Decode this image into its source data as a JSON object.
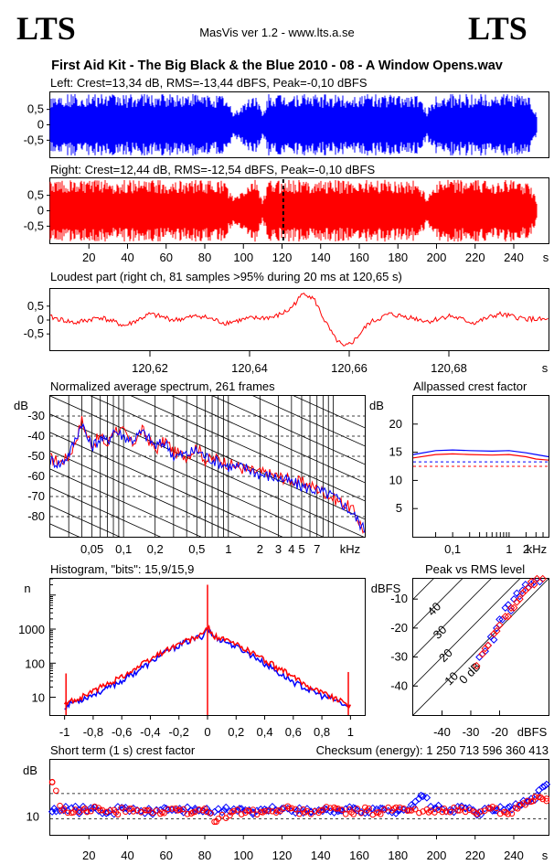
{
  "header": {
    "logo_left": "LTS",
    "logo_right": "LTS",
    "version": "MasVis ver 1.2 - www.lts.a.se",
    "filename": "First Aid Kit - The Big Black & the Blue 2010 - 08 - A Window Opens.wav"
  },
  "colors": {
    "left": "#0000ff",
    "right": "#ff0000",
    "axis": "#000000"
  },
  "chart_data": [
    {
      "id": "left-waveform",
      "type": "area",
      "title": "Left: Crest=13,34 dB, RMS=-13,44 dBFS, Peak=-0,10 dBFS",
      "series_color": "#0000ff",
      "ylim": [
        -1,
        1
      ],
      "ytick_labels": [
        "0,5",
        "0",
        "-0,5"
      ],
      "ytick_values": [
        0.5,
        0,
        -0.5
      ],
      "xlim": [
        0,
        258
      ],
      "envelope": {
        "x": [
          0,
          10,
          20,
          30,
          40,
          50,
          60,
          70,
          80,
          90,
          95,
          105,
          107,
          110,
          113,
          120,
          130,
          140,
          150,
          160,
          170,
          180,
          190,
          195,
          200,
          210,
          220,
          230,
          240,
          248,
          252
        ],
        "peak": [
          0.95,
          0.95,
          0.95,
          0.95,
          0.95,
          0.95,
          0.95,
          0.95,
          0.95,
          0.95,
          0.4,
          0.95,
          0.95,
          0.3,
          0.95,
          0.95,
          0.95,
          0.95,
          0.95,
          0.95,
          0.95,
          0.95,
          0.95,
          0.45,
          0.95,
          0.95,
          0.95,
          0.95,
          0.95,
          0.9,
          0.3
        ]
      }
    },
    {
      "id": "right-waveform",
      "type": "area",
      "title": "Right: Crest=12,44 dB, RMS=-12,54 dBFS, Peak=-0,10 dBFS",
      "series_color": "#ff0000",
      "ylim": [
        -1,
        1
      ],
      "ytick_labels": [
        "0,5",
        "0",
        "-0,5"
      ],
      "ytick_values": [
        0.5,
        0,
        -0.5
      ],
      "xlim": [
        0,
        258
      ],
      "xtick_values": [
        20,
        40,
        60,
        80,
        100,
        120,
        140,
        160,
        180,
        200,
        220,
        240
      ],
      "xtick_labels": [
        "20",
        "40",
        "60",
        "80",
        "100",
        "120",
        "140",
        "160",
        "180",
        "200",
        "220",
        "240",
        "s"
      ],
      "marker_x": 120.65,
      "envelope": {
        "x": [
          0,
          10,
          20,
          30,
          40,
          50,
          60,
          70,
          80,
          90,
          95,
          105,
          107,
          110,
          113,
          120,
          130,
          140,
          150,
          160,
          170,
          180,
          190,
          195,
          200,
          210,
          220,
          230,
          240,
          248,
          252
        ],
        "peak": [
          0.95,
          0.95,
          0.95,
          0.95,
          0.95,
          0.95,
          0.95,
          0.95,
          0.95,
          0.95,
          0.4,
          0.95,
          0.95,
          0.3,
          0.95,
          0.95,
          0.95,
          0.95,
          0.95,
          0.95,
          0.95,
          0.95,
          0.95,
          0.45,
          0.95,
          0.95,
          0.95,
          0.95,
          0.95,
          0.9,
          0.3
        ]
      }
    },
    {
      "id": "loudest-part",
      "type": "line",
      "title": "Loudest part (right ch, 81 samples >95% during 20 ms at 120,65 s)",
      "series_color": "#ff0000",
      "xlim": [
        120.6,
        120.7
      ],
      "ylim": [
        -1,
        1
      ],
      "ytick_labels": [
        "0,5",
        "0",
        "-0,5"
      ],
      "ytick_values": [
        0.5,
        0,
        -0.5
      ],
      "xtick_values": [
        120.62,
        120.64,
        120.66,
        120.68
      ],
      "xtick_labels": [
        "120,62",
        "120,64",
        "120,66",
        "120,68",
        "s"
      ],
      "x": [
        120.6,
        120.605,
        120.61,
        120.615,
        120.62,
        120.625,
        120.63,
        120.635,
        120.64,
        120.645,
        120.648,
        120.651,
        120.653,
        120.655,
        120.657,
        120.659,
        120.661,
        120.664,
        120.668,
        120.672,
        120.676,
        120.68,
        120.685,
        120.69,
        120.695,
        120.7
      ],
      "y": [
        0.1,
        -0.1,
        0.1,
        -0.2,
        0.2,
        0.0,
        0.15,
        -0.1,
        0.05,
        0.1,
        0.35,
        0.95,
        0.7,
        0.0,
        -0.6,
        -0.95,
        -0.7,
        -0.1,
        0.2,
        0.1,
        -0.05,
        0.15,
        -0.1,
        0.2,
        0.05,
        0.0
      ]
    },
    {
      "id": "average-spectrum",
      "type": "line",
      "title": "Normalized average spectrum, 261 frames",
      "yunit": "dB",
      "xunit": "kHz",
      "xscale": "log",
      "xlim": [
        0.02,
        20
      ],
      "ylim": [
        -90,
        -20
      ],
      "ytick_values": [
        -30,
        -40,
        -50,
        -60,
        -70,
        -80
      ],
      "ytick_labels": [
        "-30",
        "-40",
        "-50",
        "-60",
        "-70",
        "-80"
      ],
      "xtick_values": [
        0.05,
        0.1,
        0.2,
        0.5,
        1,
        2,
        3,
        4,
        5,
        7
      ],
      "xtick_labels": [
        "0,05",
        "0,1",
        "0,2",
        "0,5",
        "1",
        "2",
        "3",
        "4",
        "5",
        "7",
        "kHz"
      ],
      "series": [
        {
          "color": "#ff0000",
          "x": [
            0.02,
            0.025,
            0.03,
            0.035,
            0.04,
            0.045,
            0.05,
            0.06,
            0.07,
            0.08,
            0.1,
            0.12,
            0.15,
            0.2,
            0.25,
            0.3,
            0.4,
            0.5,
            0.6,
            0.8,
            1,
            1.5,
            2,
            3,
            4,
            5,
            7,
            10,
            15,
            20
          ],
          "y": [
            -51,
            -53,
            -50,
            -42,
            -32,
            -40,
            -44,
            -40,
            -45,
            -36,
            -38,
            -44,
            -37,
            -47,
            -42,
            -48,
            -50,
            -45,
            -52,
            -51,
            -54,
            -57,
            -58,
            -60,
            -62,
            -63,
            -66,
            -71,
            -76,
            -88
          ]
        },
        {
          "color": "#0000ff",
          "x": [
            0.02,
            0.025,
            0.03,
            0.035,
            0.04,
            0.045,
            0.05,
            0.06,
            0.07,
            0.08,
            0.1,
            0.12,
            0.15,
            0.2,
            0.25,
            0.3,
            0.4,
            0.5,
            0.6,
            0.8,
            1,
            1.5,
            2,
            3,
            4,
            5,
            7,
            10,
            15,
            20
          ],
          "y": [
            -52,
            -54,
            -49,
            -41,
            -33,
            -41,
            -45,
            -41,
            -43,
            -37,
            -40,
            -42,
            -38,
            -45,
            -43,
            -50,
            -49,
            -47,
            -50,
            -53,
            -55,
            -56,
            -59,
            -61,
            -63,
            -65,
            -67,
            -70,
            -78,
            -87
          ]
        }
      ]
    },
    {
      "id": "allpassed-crest",
      "type": "line",
      "title": "Allpassed crest factor",
      "yunit": "dB",
      "xunit": "kHz",
      "xscale": "log",
      "xlim": [
        0.02,
        5
      ],
      "ylim": [
        0,
        25
      ],
      "ytick_values": [
        20,
        15,
        10,
        5
      ],
      "ytick_labels": [
        "20",
        "15",
        "10",
        "5"
      ],
      "xtick_values": [
        0.1,
        1,
        2
      ],
      "xtick_labels": [
        "0,1",
        "1",
        "2",
        "kHz"
      ],
      "reference_lines": [
        {
          "color": "#ff0000",
          "y": 12.5
        },
        {
          "color": "#0000ff",
          "y": 13.3
        }
      ],
      "series": [
        {
          "color": "#0000ff",
          "x": [
            0.02,
            0.05,
            0.1,
            0.2,
            0.5,
            1,
            2,
            3,
            5
          ],
          "y": [
            14.6,
            15.3,
            15.4,
            15.3,
            15.2,
            15.3,
            14.9,
            14.6,
            14.2
          ]
        },
        {
          "color": "#ff0000",
          "x": [
            0.02,
            0.05,
            0.1,
            0.2,
            0.5,
            1,
            2,
            3,
            5
          ],
          "y": [
            14.0,
            14.6,
            14.7,
            14.6,
            14.5,
            14.6,
            14.2,
            13.8,
            13.6
          ]
        }
      ]
    },
    {
      "id": "histogram",
      "type": "line",
      "title": "Histogram, \"bits\": 15,9/15,9",
      "yunit": "n",
      "yscale": "log",
      "xlim": [
        -1.1,
        1.1
      ],
      "ylim": [
        3,
        30000
      ],
      "ytick_values": [
        1000,
        100,
        10
      ],
      "ytick_labels": [
        "1000",
        "100",
        "10"
      ],
      "xtick_values": [
        -1,
        -0.8,
        -0.6,
        -0.4,
        -0.2,
        0,
        0.2,
        0.4,
        0.6,
        0.8,
        1
      ],
      "xtick_labels": [
        "-1",
        "-0,8",
        "-0,6",
        "-0,4",
        "-0,2",
        "0",
        "0,2",
        "0,4",
        "0,6",
        "0,8",
        "1"
      ],
      "series": [
        {
          "color": "#0000ff",
          "x": [
            -1,
            -0.95,
            -0.9,
            -0.8,
            -0.7,
            -0.6,
            -0.5,
            -0.4,
            -0.3,
            -0.2,
            -0.1,
            -0.03,
            0,
            0.03,
            0.1,
            0.2,
            0.3,
            0.4,
            0.5,
            0.6,
            0.7,
            0.8,
            0.9,
            0.95,
            1
          ],
          "y": [
            5,
            7,
            8,
            12,
            18,
            30,
            55,
            100,
            200,
            330,
            500,
            650,
            1100,
            650,
            480,
            300,
            180,
            95,
            50,
            28,
            17,
            11,
            8,
            6,
            5
          ]
        },
        {
          "color": "#ff0000",
          "x": [
            -1,
            -0.95,
            -0.9,
            -0.8,
            -0.7,
            -0.6,
            -0.5,
            -0.4,
            -0.3,
            -0.2,
            -0.1,
            -0.03,
            0,
            0.03,
            0.1,
            0.2,
            0.3,
            0.4,
            0.5,
            0.6,
            0.7,
            0.8,
            0.9,
            0.95,
            1
          ],
          "y": [
            6,
            8,
            9,
            15,
            24,
            40,
            70,
            125,
            230,
            360,
            530,
            680,
            1200,
            680,
            520,
            350,
            220,
            120,
            68,
            38,
            22,
            14,
            9,
            7,
            6
          ]
        }
      ],
      "spikes": [
        {
          "color": "#ff0000",
          "x": -0.99,
          "y": 50
        },
        {
          "color": "#ff0000",
          "x": 0.985,
          "y": 55
        },
        {
          "color": "#ff0000",
          "x": 0,
          "y": 20000
        }
      ]
    },
    {
      "id": "peak-vs-rms",
      "type": "scatter",
      "title": "Peak vs RMS level",
      "yunit": "dBFS",
      "xunit": "dBFS",
      "xlim": [
        -50,
        -3
      ],
      "ylim": [
        -50,
        -3
      ],
      "ytick_values": [
        -10,
        -20,
        -30,
        -40
      ],
      "ytick_labels": [
        "-10",
        "-20",
        "-30",
        "-40"
      ],
      "xtick_values": [
        -40,
        -30,
        -20
      ],
      "xtick_labels": [
        "-40",
        "-30",
        "-20",
        "dBFS"
      ],
      "crest_labels": [
        "40",
        "30",
        "20",
        "10",
        "0 dB"
      ],
      "series": [
        {
          "color": "#0000ff",
          "x": [
            -27,
            -25,
            -24,
            -23,
            -22,
            -21,
            -20,
            -19,
            -18,
            -17,
            -16,
            -15,
            -14,
            -13,
            -12,
            -11,
            -10,
            -9,
            -8,
            -6
          ],
          "y": [
            -30,
            -28,
            -26,
            -23,
            -24,
            -20,
            -17,
            -17,
            -13,
            -12,
            -14,
            -10,
            -8,
            -9,
            -7,
            -5,
            -6,
            -5,
            -4,
            -4
          ]
        },
        {
          "color": "#ff0000",
          "x": [
            -28,
            -26,
            -25,
            -24,
            -22,
            -21,
            -20,
            -18,
            -17,
            -16,
            -15,
            -14,
            -13,
            -12,
            -11,
            -10,
            -9,
            -8,
            -7,
            -5
          ],
          "y": [
            -33,
            -29,
            -27,
            -26,
            -22,
            -21,
            -19,
            -16,
            -16,
            -13,
            -13,
            -11,
            -10,
            -8,
            -7,
            -6,
            -4,
            -5,
            -3,
            -3
          ]
        }
      ]
    },
    {
      "id": "short-term-crest",
      "type": "scatter",
      "title": "Short term (1 s) crest factor",
      "yunit": "dB",
      "xlim": [
        0,
        258
      ],
      "ylim": [
        5,
        25
      ],
      "ytick_values": [
        10
      ],
      "ytick_labels": [
        "10"
      ],
      "xtick_values": [
        20,
        40,
        60,
        80,
        100,
        120,
        140,
        160,
        180,
        200,
        220,
        240
      ],
      "xtick_labels": [
        "20",
        "40",
        "60",
        "80",
        "100",
        "120",
        "140",
        "160",
        "180",
        "200",
        "220",
        "240",
        "s"
      ],
      "reference_lines": [
        {
          "color": "#000000",
          "y": 16
        },
        {
          "color": "#000000",
          "y": 9.3
        }
      ],
      "checksum": "Checksum (energy):  1 250 713 596 360 413",
      "series": [
        {
          "color": "#0000ff",
          "x": [
            2,
            8,
            15,
            22,
            30,
            38,
            45,
            52,
            60,
            68,
            75,
            82,
            90,
            98,
            105,
            112,
            120,
            128,
            135,
            142,
            150,
            158,
            165,
            172,
            180,
            188,
            192,
            200,
            208,
            215,
            222,
            230,
            238,
            244,
            248,
            252,
            256
          ],
          "y": [
            12,
            12.5,
            11.5,
            12,
            11,
            12,
            11.5,
            11,
            12,
            11.5,
            12,
            11,
            11.5,
            12,
            11,
            11.5,
            12,
            11.5,
            11,
            12,
            11.5,
            12,
            11,
            12,
            11.5,
            12.5,
            15.5,
            12,
            11.5,
            12,
            11,
            11.5,
            12.5,
            13,
            14,
            15.5,
            18
          ]
        },
        {
          "color": "#ff0000",
          "x": [
            1,
            6,
            12,
            18,
            26,
            34,
            42,
            50,
            58,
            66,
            74,
            80,
            86,
            94,
            102,
            110,
            118,
            124,
            132,
            140,
            148,
            156,
            164,
            170,
            178,
            186,
            196,
            204,
            212,
            220,
            228,
            236,
            242,
            246,
            250,
            254,
            257
          ],
          "y": [
            19,
            11.5,
            11,
            12,
            11.5,
            11,
            12,
            11.5,
            11,
            11.5,
            11,
            12,
            8.5,
            11,
            11.5,
            11,
            11.5,
            12,
            11,
            11.5,
            12,
            11,
            11.5,
            11,
            12,
            11.5,
            11,
            12,
            11.5,
            11,
            12,
            11,
            12,
            13,
            14,
            15,
            14
          ]
        }
      ]
    }
  ]
}
